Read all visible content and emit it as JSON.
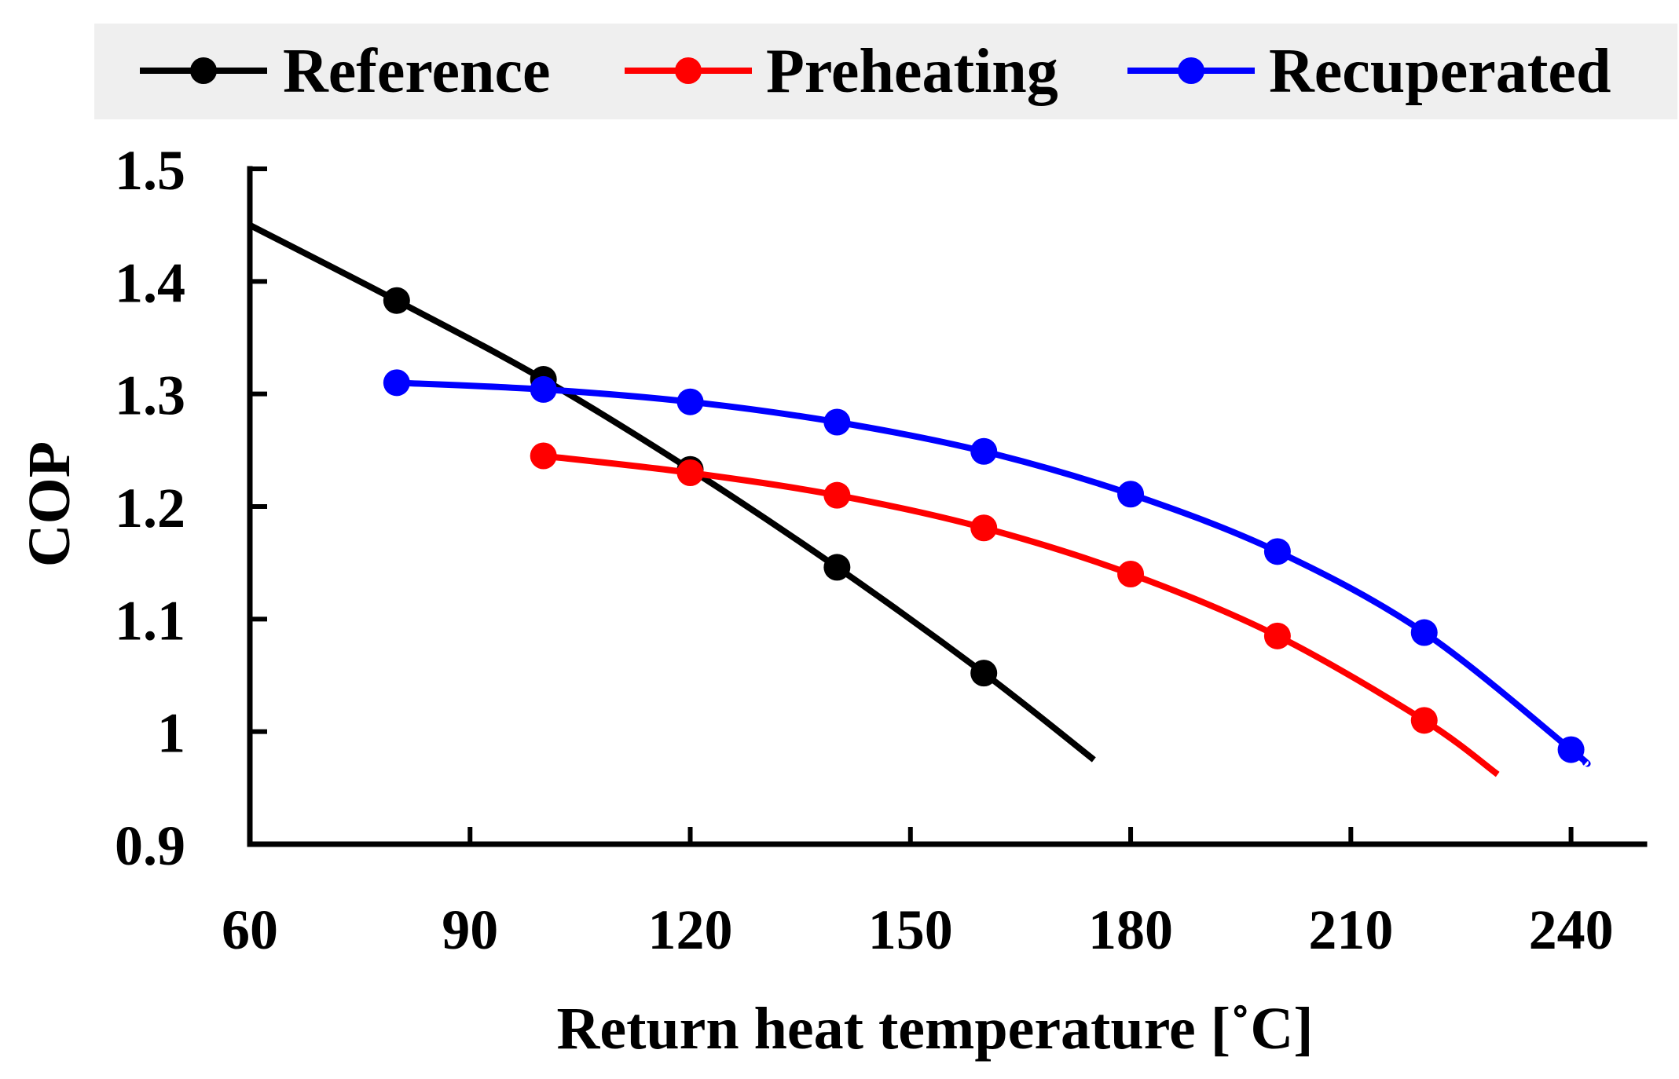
{
  "chart_data": {
    "type": "line",
    "title": "",
    "xlabel": "Return heat temperature [˚C]",
    "ylabel": "COP",
    "xlim": [
      60,
      250
    ],
    "ylim": [
      0.9,
      1.5
    ],
    "xticks": [
      60,
      90,
      120,
      150,
      180,
      210,
      240
    ],
    "xtick_labels": [
      "60",
      "90",
      "120",
      "150",
      "180",
      "210",
      "240"
    ],
    "yticks": [
      0.9,
      1.0,
      1.1,
      1.2,
      1.3,
      1.4,
      1.5
    ],
    "ytick_labels": [
      "0.9",
      "1",
      "1.1",
      "1.2",
      "1.3",
      "1.4",
      "1.5"
    ],
    "grid": false,
    "legend_position": "top",
    "series": [
      {
        "name": "Reference",
        "color": "#000000",
        "line": [
          [
            60,
            1.45
          ],
          [
            80,
            1.383
          ],
          [
            100,
            1.313
          ],
          [
            120,
            1.233
          ],
          [
            140,
            1.146
          ],
          [
            160,
            1.052
          ],
          [
            175,
            0.975
          ]
        ],
        "markers": [
          [
            80,
            1.383
          ],
          [
            100,
            1.313
          ],
          [
            120,
            1.233
          ],
          [
            140,
            1.146
          ],
          [
            160,
            1.052
          ]
        ]
      },
      {
        "name": "Preheating",
        "color": "#ff0000",
        "line": [
          [
            100,
            1.245
          ],
          [
            120,
            1.23
          ],
          [
            140,
            1.21
          ],
          [
            160,
            1.181
          ],
          [
            180,
            1.14
          ],
          [
            200,
            1.085
          ],
          [
            220,
            1.01
          ],
          [
            230,
            0.962
          ]
        ],
        "markers": [
          [
            100,
            1.245
          ],
          [
            120,
            1.23
          ],
          [
            140,
            1.21
          ],
          [
            160,
            1.181
          ],
          [
            180,
            1.14
          ],
          [
            200,
            1.085
          ],
          [
            220,
            1.01
          ]
        ]
      },
      {
        "name": "Recuperated",
        "color": "#0000ff",
        "line": [
          [
            80,
            1.31
          ],
          [
            100,
            1.304
          ],
          [
            120,
            1.293
          ],
          [
            140,
            1.275
          ],
          [
            160,
            1.249
          ],
          [
            180,
            1.211
          ],
          [
            200,
            1.16
          ],
          [
            220,
            1.088
          ],
          [
            240,
            0.984
          ],
          [
            242,
            0.972
          ]
        ],
        "markers": [
          [
            80,
            1.31
          ],
          [
            100,
            1.304
          ],
          [
            120,
            1.293
          ],
          [
            140,
            1.275
          ],
          [
            160,
            1.249
          ],
          [
            180,
            1.211
          ],
          [
            200,
            1.16
          ],
          [
            220,
            1.088
          ],
          [
            240,
            0.984
          ]
        ]
      }
    ]
  },
  "legend": {
    "background": "#efefef"
  }
}
